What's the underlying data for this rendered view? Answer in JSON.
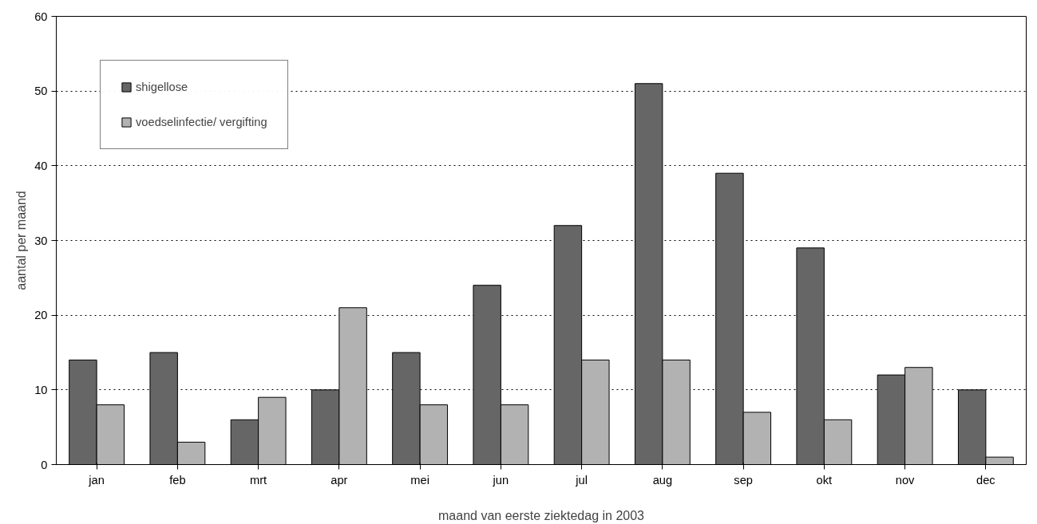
{
  "chart_data": {
    "type": "bar",
    "xlabel": "maand van eerste ziektedag in 2003",
    "ylabel": "aantal per maand",
    "categories": [
      "jan",
      "feb",
      "mrt",
      "apr",
      "mei",
      "jun",
      "jul",
      "aug",
      "sep",
      "okt",
      "nov",
      "dec"
    ],
    "series": [
      {
        "name": "shigellose",
        "color": "#666666",
        "values": [
          14,
          15,
          6,
          10,
          15,
          24,
          32,
          51,
          39,
          29,
          12,
          10
        ]
      },
      {
        "name": "voedselinfectie/ vergifting",
        "color": "#b2b2b2",
        "values": [
          8,
          3,
          9,
          21,
          8,
          8,
          14,
          14,
          7,
          6,
          13,
          1
        ]
      }
    ],
    "ylim": [
      0,
      60
    ],
    "yticks": [
      0,
      10,
      20,
      30,
      40,
      50,
      60
    ],
    "grid": "y",
    "legend": "top left"
  }
}
